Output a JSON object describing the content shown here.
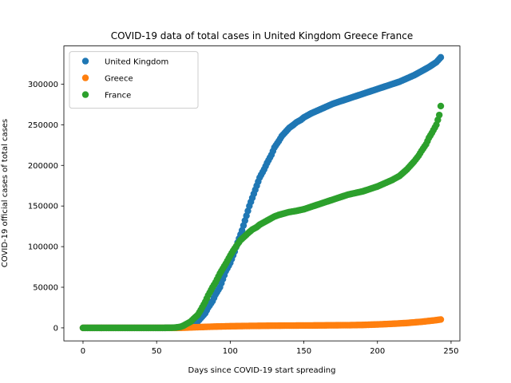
{
  "chart_data": {
    "type": "scatter",
    "title": "COVID-19 data of total cases in United Kingdom Greece France",
    "xlabel": "Days since COVID-19 start spreading",
    "ylabel": "COVID-19 official cases of total cases",
    "xlim": [
      -13,
      256
    ],
    "ylim": [
      -16000,
      347000
    ],
    "xticks": [
      0,
      50,
      100,
      150,
      200,
      250
    ],
    "yticks": [
      0,
      50000,
      100000,
      150000,
      200000,
      250000,
      300000
    ],
    "legend_position": "top-left",
    "grid": false,
    "series": [
      {
        "name": "United Kingdom",
        "color": "#1f77b4",
        "points": [
          [
            0,
            0
          ],
          [
            10,
            0
          ],
          [
            20,
            0
          ],
          [
            30,
            0
          ],
          [
            40,
            0
          ],
          [
            50,
            0
          ],
          [
            55,
            10
          ],
          [
            60,
            100
          ],
          [
            65,
            500
          ],
          [
            70,
            1500
          ],
          [
            72,
            2500
          ],
          [
            75,
            4500
          ],
          [
            78,
            8000
          ],
          [
            80,
            12000
          ],
          [
            83,
            18000
          ],
          [
            85,
            25000
          ],
          [
            88,
            33000
          ],
          [
            90,
            41000
          ],
          [
            93,
            50000
          ],
          [
            95,
            60000
          ],
          [
            97,
            70000
          ],
          [
            100,
            80000
          ],
          [
            103,
            94000
          ],
          [
            105,
            105000
          ],
          [
            108,
            120000
          ],
          [
            110,
            132000
          ],
          [
            113,
            150000
          ],
          [
            115,
            160000
          ],
          [
            118,
            175000
          ],
          [
            120,
            185000
          ],
          [
            123,
            195000
          ],
          [
            125,
            203000
          ],
          [
            128,
            213000
          ],
          [
            130,
            222000
          ],
          [
            133,
            230000
          ],
          [
            135,
            236000
          ],
          [
            138,
            242000
          ],
          [
            140,
            246000
          ],
          [
            143,
            250000
          ],
          [
            145,
            253000
          ],
          [
            148,
            256000
          ],
          [
            150,
            259000
          ],
          [
            155,
            264000
          ],
          [
            160,
            268000
          ],
          [
            165,
            272000
          ],
          [
            170,
            276000
          ],
          [
            175,
            279000
          ],
          [
            180,
            282000
          ],
          [
            185,
            285000
          ],
          [
            190,
            288000
          ],
          [
            195,
            291000
          ],
          [
            200,
            294000
          ],
          [
            205,
            297000
          ],
          [
            210,
            300000
          ],
          [
            215,
            303000
          ],
          [
            220,
            307000
          ],
          [
            225,
            311000
          ],
          [
            230,
            316000
          ],
          [
            235,
            321000
          ],
          [
            240,
            327000
          ],
          [
            243,
            333000
          ]
        ]
      },
      {
        "name": "Greece",
        "color": "#ff7f0e",
        "points": [
          [
            0,
            0
          ],
          [
            10,
            0
          ],
          [
            20,
            0
          ],
          [
            30,
            0
          ],
          [
            40,
            0
          ],
          [
            50,
            0
          ],
          [
            55,
            0
          ],
          [
            60,
            7
          ],
          [
            65,
            50
          ],
          [
            70,
            300
          ],
          [
            75,
            700
          ],
          [
            80,
            1000
          ],
          [
            85,
            1300
          ],
          [
            90,
            1600
          ],
          [
            95,
            1800
          ],
          [
            100,
            2000
          ],
          [
            110,
            2300
          ],
          [
            120,
            2500
          ],
          [
            130,
            2700
          ],
          [
            140,
            2800
          ],
          [
            150,
            2900
          ],
          [
            160,
            3000
          ],
          [
            170,
            3200
          ],
          [
            180,
            3300
          ],
          [
            190,
            3600
          ],
          [
            200,
            4200
          ],
          [
            210,
            5000
          ],
          [
            220,
            6000
          ],
          [
            230,
            7500
          ],
          [
            235,
            8500
          ],
          [
            240,
            9500
          ],
          [
            243,
            10300
          ]
        ]
      },
      {
        "name": "France",
        "color": "#2ca02c",
        "points": [
          [
            0,
            0
          ],
          [
            10,
            0
          ],
          [
            20,
            0
          ],
          [
            30,
            0
          ],
          [
            40,
            0
          ],
          [
            50,
            0
          ],
          [
            55,
            10
          ],
          [
            60,
            100
          ],
          [
            63,
            400
          ],
          [
            66,
            1200
          ],
          [
            68,
            2500
          ],
          [
            70,
            4500
          ],
          [
            73,
            7500
          ],
          [
            75,
            11000
          ],
          [
            78,
            16000
          ],
          [
            80,
            22000
          ],
          [
            83,
            32000
          ],
          [
            85,
            40000
          ],
          [
            88,
            50000
          ],
          [
            90,
            56000
          ],
          [
            93,
            67000
          ],
          [
            95,
            73000
          ],
          [
            97,
            79000
          ],
          [
            100,
            89000
          ],
          [
            102,
            95000
          ],
          [
            105,
            103000
          ],
          [
            107,
            108000
          ],
          [
            110,
            113000
          ],
          [
            113,
            118000
          ],
          [
            115,
            121000
          ],
          [
            118,
            124000
          ],
          [
            120,
            127000
          ],
          [
            123,
            130000
          ],
          [
            125,
            132000
          ],
          [
            128,
            135000
          ],
          [
            130,
            137000
          ],
          [
            133,
            139000
          ],
          [
            135,
            140000
          ],
          [
            138,
            141500
          ],
          [
            140,
            142500
          ],
          [
            145,
            144000
          ],
          [
            150,
            146000
          ],
          [
            155,
            149000
          ],
          [
            160,
            152000
          ],
          [
            165,
            155000
          ],
          [
            170,
            158000
          ],
          [
            175,
            161000
          ],
          [
            180,
            164000
          ],
          [
            185,
            166000
          ],
          [
            190,
            168000
          ],
          [
            195,
            171000
          ],
          [
            200,
            174000
          ],
          [
            205,
            178000
          ],
          [
            210,
            182000
          ],
          [
            215,
            187000
          ],
          [
            220,
            195000
          ],
          [
            225,
            205000
          ],
          [
            228,
            212000
          ],
          [
            230,
            218000
          ],
          [
            233,
            226000
          ],
          [
            235,
            234000
          ],
          [
            237,
            240000
          ],
          [
            240,
            250000
          ],
          [
            242,
            262000
          ],
          [
            243,
            273000
          ]
        ]
      }
    ]
  }
}
